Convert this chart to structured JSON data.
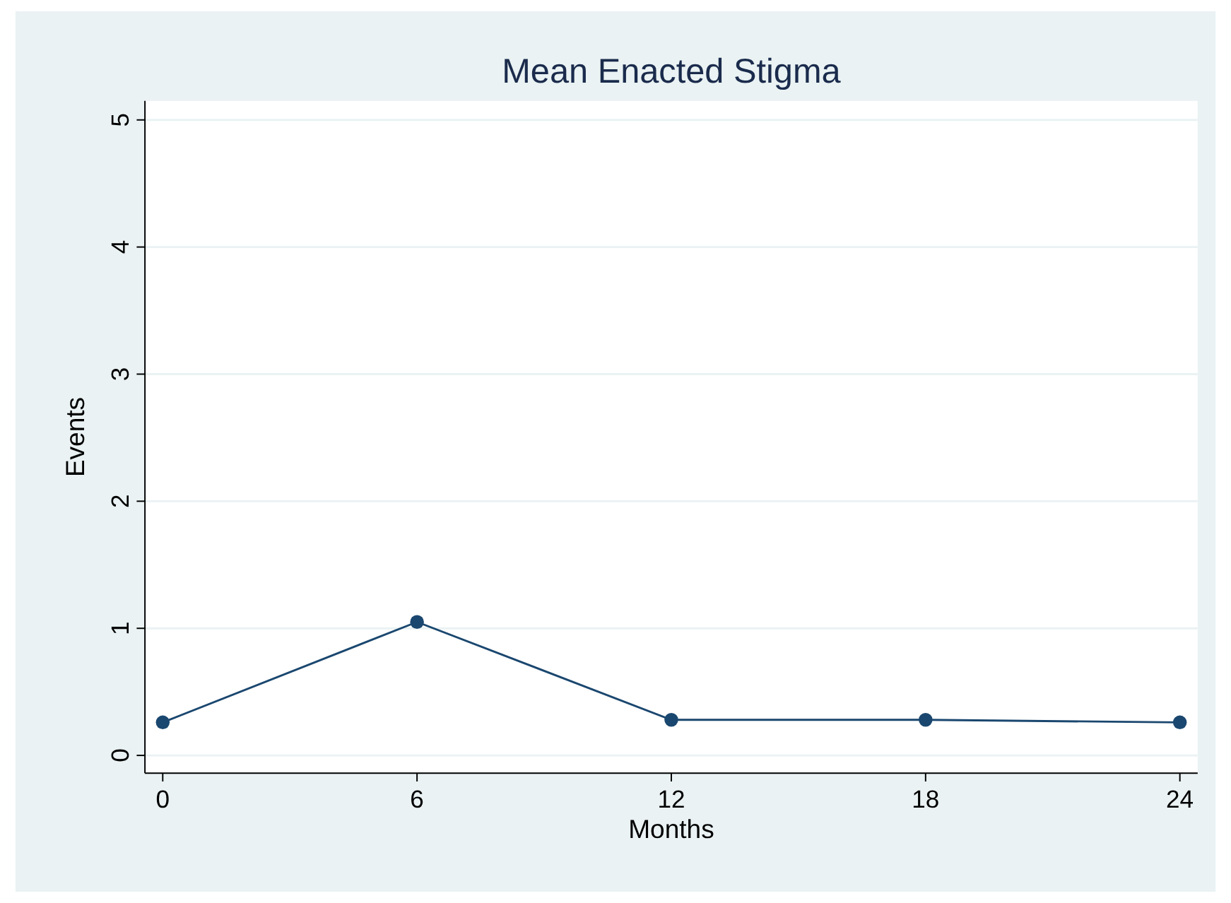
{
  "chart_data": {
    "type": "line",
    "title": "Mean Enacted Stigma",
    "xlabel": "Months",
    "ylabel": "Events",
    "x": [
      0,
      6,
      12,
      18,
      24
    ],
    "series": [
      {
        "color": "#1a476f",
        "values": [
          0.26,
          1.05,
          0.28,
          0.28,
          0.26
        ]
      }
    ],
    "xlim": [
      -0.42,
      24.42
    ],
    "ylim": [
      -0.14,
      5.15
    ],
    "xticks": [
      0,
      6,
      12,
      18,
      24
    ],
    "yticks": [
      0,
      1,
      2,
      3,
      4,
      5
    ],
    "grid": "y",
    "marker": "circle",
    "line_style": "solid"
  }
}
